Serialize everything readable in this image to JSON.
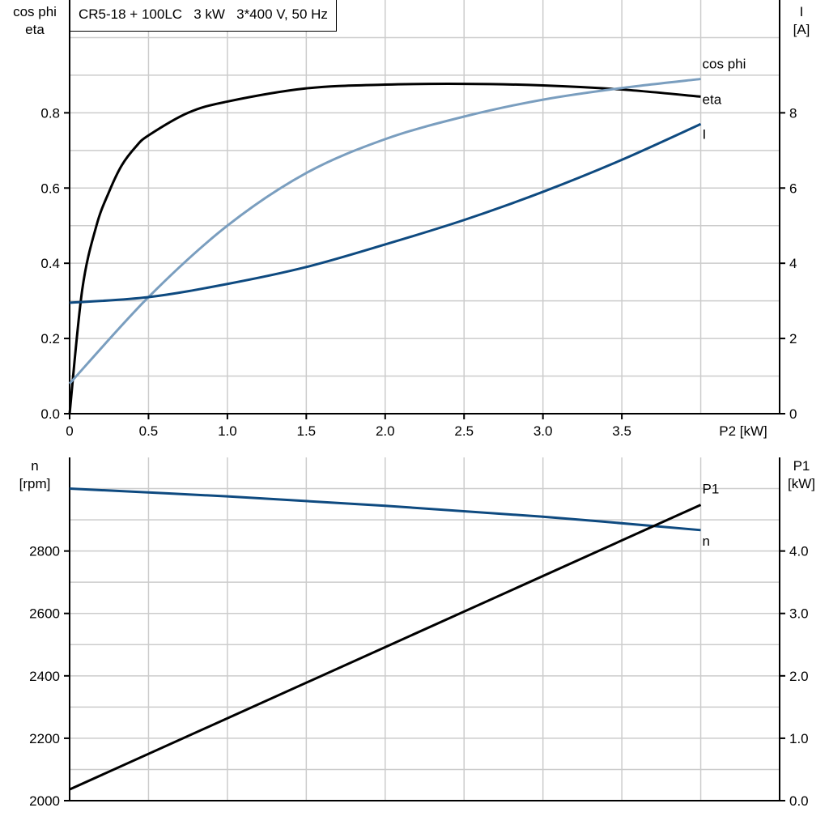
{
  "chart_data": [
    {
      "type": "line",
      "title": "CR5-18 + 100LC   3 kW   3*400 V, 50 Hz",
      "xlabel": "P2 [kW]",
      "ylabel_left": [
        "cos phi",
        "eta"
      ],
      "ylabel_right": [
        "I",
        "[A]"
      ],
      "xlim": [
        0,
        4.5
      ],
      "ylim_left": [
        0,
        1.1
      ],
      "ylim_right": [
        0,
        11
      ],
      "x_ticks": [
        "0",
        "0.5",
        "1.0",
        "1.5",
        "2.0",
        "2.5",
        "3.0",
        "3.5"
      ],
      "x_tick_values": [
        0,
        0.5,
        1.0,
        1.5,
        2.0,
        2.5,
        3.0,
        3.5
      ],
      "y_left_ticks": [
        "0.0",
        "0.2",
        "0.4",
        "0.6",
        "0.8"
      ],
      "y_left_tick_values": [
        0,
        0.2,
        0.4,
        0.6,
        0.8
      ],
      "y_right_ticks": [
        "0",
        "2",
        "4",
        "6",
        "8"
      ],
      "y_right_tick_values": [
        0,
        2,
        4,
        6,
        8
      ],
      "grid": true,
      "series": [
        {
          "name": "eta",
          "axis": "left",
          "color": "#000000",
          "x": [
            0,
            0.08,
            0.17,
            0.25,
            0.33,
            0.42,
            0.5,
            0.75,
            1.0,
            1.5,
            2.0,
            2.5,
            3.0,
            3.5,
            4.0
          ],
          "y": [
            0,
            0.33,
            0.5,
            0.59,
            0.66,
            0.71,
            0.74,
            0.8,
            0.83,
            0.865,
            0.875,
            0.877,
            0.873,
            0.862,
            0.843
          ]
        },
        {
          "name": "cos phi",
          "axis": "left",
          "color": "#7a9ebf",
          "x": [
            0,
            0.5,
            1.0,
            1.5,
            2.0,
            2.5,
            3.0,
            3.5,
            4.0
          ],
          "y": [
            0.08,
            0.31,
            0.5,
            0.64,
            0.73,
            0.79,
            0.835,
            0.866,
            0.89
          ]
        },
        {
          "name": "I",
          "axis": "right",
          "color": "#0e4a80",
          "x": [
            0,
            0.5,
            1.0,
            1.5,
            2.0,
            2.5,
            3.0,
            3.5,
            4.0
          ],
          "y": [
            2.95,
            3.1,
            3.45,
            3.9,
            4.5,
            5.15,
            5.9,
            6.75,
            7.7
          ]
        }
      ]
    },
    {
      "type": "line",
      "ylabel_left": [
        "n",
        "[rpm]"
      ],
      "ylabel_right": [
        "P1",
        "[kW]"
      ],
      "xlim": [
        0,
        4.5
      ],
      "ylim_left": [
        2000,
        3100
      ],
      "ylim_right": [
        0,
        5.5
      ],
      "y_left_ticks": [
        "2000",
        "2200",
        "2400",
        "2600",
        "2800"
      ],
      "y_left_tick_values": [
        2000,
        2200,
        2400,
        2600,
        2800
      ],
      "y_right_ticks": [
        "0.0",
        "1.0",
        "2.0",
        "3.0",
        "4.0"
      ],
      "y_right_tick_values": [
        0,
        1,
        2,
        3,
        4
      ],
      "grid": true,
      "series": [
        {
          "name": "n",
          "axis": "left",
          "color": "#0e4a80",
          "x": [
            0,
            1.0,
            2.0,
            3.0,
            4.0
          ],
          "y": [
            3000,
            2975,
            2945,
            2910,
            2867
          ]
        },
        {
          "name": "P1",
          "axis": "right",
          "color": "#000000",
          "x": [
            0,
            4.0
          ],
          "y": [
            0.18,
            4.74
          ]
        }
      ]
    }
  ]
}
